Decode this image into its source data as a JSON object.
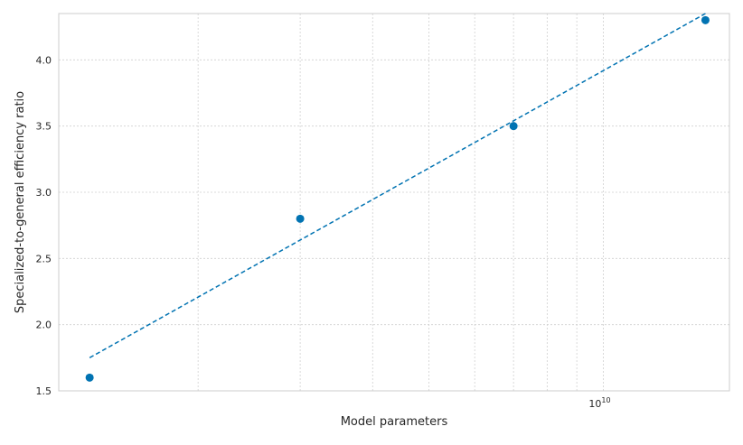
{
  "chart_data": {
    "type": "scatter",
    "title": "",
    "xlabel": "Model parameters",
    "ylabel": "Specialized-to-general efficiency ratio",
    "xscale": "log",
    "xlim": [
      1150000000,
      16500000000
    ],
    "ylim": [
      1.5,
      4.35
    ],
    "grid": true,
    "x_tick_labels": [
      {
        "value": 10000000000,
        "base": "10",
        "exponent": "10"
      }
    ],
    "y_ticks": [
      1.5,
      2.0,
      2.5,
      3.0,
      3.5,
      4.0
    ],
    "y_tick_labels": [
      "1.5",
      "2.0",
      "2.5",
      "3.0",
      "3.5",
      "4.0"
    ],
    "series": [
      {
        "type": "scatter",
        "x": [
          1300000000,
          3000000000,
          7000000000,
          15000000000
        ],
        "y": [
          1.6,
          2.8,
          3.5,
          4.3
        ]
      },
      {
        "type": "line",
        "style": "dashed",
        "x": [
          1300000000,
          15000000000
        ],
        "y": [
          1.75,
          4.35
        ]
      }
    ],
    "colors": {
      "points": "#0173b2",
      "fit_line": "#0173b2",
      "grid": "#d0d0d0",
      "spine": "#cccccc",
      "text": "#262626"
    }
  }
}
